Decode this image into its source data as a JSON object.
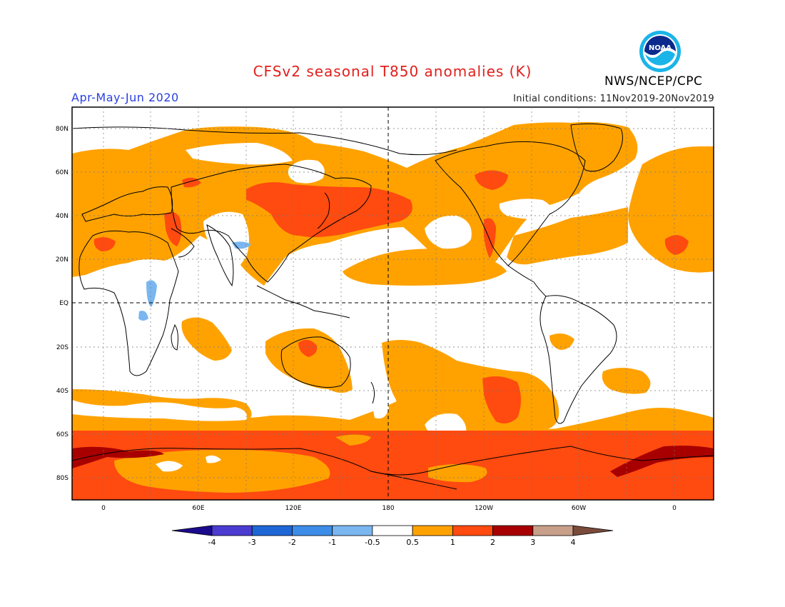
{
  "header": {
    "title": "CFSv2 seasonal T850 anomalies (K)",
    "period": "Apr-May-Jun 2020",
    "initial_conditions": "Initial conditions: 11Nov2019-20Nov2019",
    "organization": "NWS/NCEP/CPC",
    "logo_text": "NOAA"
  },
  "map": {
    "projection": "cylindrical equidistant",
    "lat_labels": [
      "80N",
      "60N",
      "40N",
      "20N",
      "EQ",
      "20S",
      "40S",
      "60S",
      "80S"
    ],
    "lon_labels": [
      "0",
      "60E",
      "120E",
      "180",
      "120W",
      "60W",
      "0"
    ]
  },
  "colorbar": {
    "labels": [
      "-4",
      "-3",
      "-2",
      "-1",
      "-0.5",
      "0.5",
      "1",
      "2",
      "3",
      "4"
    ],
    "colors": [
      "#1a0b8c",
      "#4b3bd0",
      "#1e66d6",
      "#3d8de8",
      "#7ab6f0",
      "#ffffff",
      "#ffa200",
      "#ff4a10",
      "#a80000",
      "#c8a08a",
      "#7a4a3a"
    ]
  },
  "legend_colors": {
    "warm1": "#ffa200",
    "warm2": "#ff4a10",
    "warm3": "#a80000",
    "cool1": "#7ab6f0",
    "land_outline": "#000000"
  }
}
